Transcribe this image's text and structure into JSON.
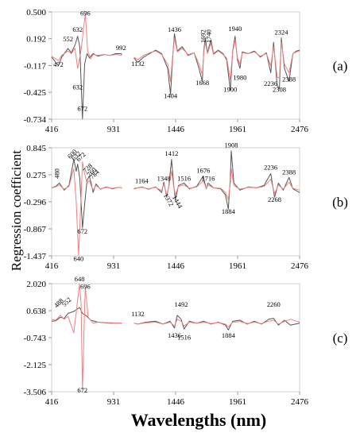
{
  "figure": {
    "xlabel": "Wavelengths (nm)",
    "ylabel": "Regression coefficient"
  },
  "chart_data": [
    {
      "type": "line",
      "panel_label": "(a)",
      "x_ticks": [
        416,
        931,
        1446,
        1961,
        2476
      ],
      "y_ticks": [
        0.5,
        0.192,
        -0.117,
        -0.425,
        -0.734
      ],
      "y_tick_labels": [
        "0.500",
        "0.192",
        "-0.117",
        "-0.425",
        "-0.734"
      ],
      "xlim": [
        416,
        2476
      ],
      "ylim": [
        -0.734,
        0.5
      ],
      "gap": [
        1000,
        1100
      ],
      "series": [
        {
          "color": "#555555",
          "x": [
            416,
            440,
            472,
            500,
            552,
            580,
            610,
            632,
            650,
            672,
            690,
            710,
            730,
            760,
            800,
            850,
            900,
            950,
            992,
            1000,
            1100,
            1132,
            1180,
            1230,
            1280,
            1330,
            1380,
            1404,
            1420,
            1436,
            1460,
            1500,
            1550,
            1600,
            1640,
            1668,
            1680,
            1692,
            1710,
            1740,
            1760,
            1800,
            1840,
            1870,
            1900,
            1920,
            1940,
            1960,
            1980,
            2000,
            2050,
            2100,
            2150,
            2200,
            2236,
            2260,
            2290,
            2308,
            2324,
            2350,
            2388,
            2420,
            2450,
            2476
          ],
          "y": [
            -0.02,
            -0.06,
            -0.12,
            -0.02,
            0.08,
            0.03,
            0.12,
            0.22,
            0.1,
            -0.73,
            -0.1,
            0.02,
            -0.03,
            0.02,
            -0.01,
            0.01,
            0.0,
            0.02,
            0.02,
            0.01,
            -0.03,
            -0.08,
            -0.02,
            0.02,
            0.06,
            0.02,
            -0.15,
            -0.45,
            -0.05,
            0.25,
            0.05,
            0.1,
            0.0,
            0.03,
            -0.15,
            -0.3,
            0.05,
            0.2,
            0.03,
            0.18,
            0.02,
            0.06,
            0.02,
            -0.05,
            -0.4,
            0.05,
            0.22,
            -0.05,
            -0.15,
            0.04,
            0.02,
            0.05,
            -0.02,
            0.03,
            -0.2,
            0.15,
            -0.35,
            -0.38,
            0.2,
            -0.15,
            -0.3,
            0.02,
            0.05,
            0.06
          ]
        },
        {
          "color": "#f08080",
          "x": [
            416,
            440,
            472,
            500,
            552,
            580,
            610,
            632,
            660,
            680,
            696,
            715,
            740,
            760,
            800,
            850,
            900,
            950,
            1000,
            1100,
            1132,
            1180,
            1230,
            1280,
            1330,
            1380,
            1404,
            1420,
            1436,
            1460,
            1500,
            1550,
            1600,
            1640,
            1668,
            1680,
            1692,
            1710,
            1740,
            1760,
            1800,
            1840,
            1870,
            1900,
            1920,
            1940,
            1960,
            1980,
            2000,
            2050,
            2100,
            2150,
            2200,
            2236,
            2260,
            2290,
            2308,
            2324,
            2350,
            2388,
            2420,
            2450,
            2476
          ],
          "y": [
            -0.01,
            -0.03,
            -0.06,
            0.0,
            0.05,
            0.02,
            0.08,
            -0.15,
            0.05,
            0.3,
            0.48,
            0.05,
            -0.04,
            0.01,
            0.0,
            0.01,
            0.0,
            0.01,
            0.0,
            -0.02,
            -0.05,
            0.0,
            0.03,
            0.05,
            0.01,
            -0.1,
            -0.3,
            -0.02,
            0.2,
            0.04,
            0.08,
            0.01,
            0.03,
            -0.1,
            -0.22,
            0.03,
            0.15,
            0.02,
            0.14,
            0.01,
            0.05,
            0.01,
            -0.03,
            -0.28,
            0.04,
            0.18,
            -0.03,
            -0.1,
            0.03,
            0.02,
            0.04,
            -0.01,
            0.02,
            -0.12,
            0.1,
            -0.25,
            -0.26,
            0.15,
            -0.1,
            -0.2,
            0.02,
            0.04,
            0.05
          ]
        }
      ],
      "annotations": [
        {
          "text": "696",
          "x": 696,
          "y": 0.46
        },
        {
          "text": "632",
          "x": 632,
          "y": 0.27
        },
        {
          "text": "552",
          "x": 552,
          "y": 0.16
        },
        {
          "text": "472",
          "x": 472,
          "y": -0.13
        },
        {
          "text": "632",
          "x": 632,
          "y": -0.39
        },
        {
          "text": "672",
          "x": 672,
          "y": -0.64
        },
        {
          "text": "992",
          "x": 992,
          "y": 0.06
        },
        {
          "text": "1132",
          "x": 1132,
          "y": -0.12
        },
        {
          "text": "1436",
          "x": 1436,
          "y": 0.27
        },
        {
          "text": "1404",
          "x": 1404,
          "y": -0.49
        },
        {
          "text": "1668",
          "x": 1668,
          "y": -0.34
        },
        {
          "text": "1692",
          "x": 1692,
          "y": 0.22,
          "rotate": -90
        },
        {
          "text": "1740",
          "x": 1740,
          "y": 0.22,
          "rotate": -90
        },
        {
          "text": "1940",
          "x": 1940,
          "y": 0.28
        },
        {
          "text": "1900",
          "x": 1900,
          "y": -0.42
        },
        {
          "text": "1980",
          "x": 1980,
          "y": -0.28
        },
        {
          "text": "2324",
          "x": 2324,
          "y": 0.24
        },
        {
          "text": "2236",
          "x": 2236,
          "y": -0.35
        },
        {
          "text": "2308",
          "x": 2308,
          "y": -0.42
        },
        {
          "text": "2388",
          "x": 2388,
          "y": -0.3
        }
      ]
    },
    {
      "type": "line",
      "panel_label": "(b)",
      "x_ticks": [
        416,
        931,
        1446,
        1961,
        2476
      ],
      "y_ticks": [
        0.845,
        0.275,
        -0.296,
        -0.867,
        -1.437
      ],
      "y_tick_labels": [
        "0.845",
        "0.275",
        "-0.296",
        "-0.867",
        "-1.437"
      ],
      "xlim": [
        416,
        2476
      ],
      "ylim": [
        -1.437,
        0.845
      ],
      "gap": [
        1000,
        1100
      ],
      "series": [
        {
          "color": "#555555",
          "x": [
            416,
            450,
            480,
            520,
            560,
            600,
            620,
            632,
            650,
            672,
            690,
            710,
            728,
            744,
            760,
            784,
            820,
            870,
            920,
            970,
            1000,
            1100,
            1164,
            1220,
            1280,
            1330,
            1348,
            1372,
            1390,
            1412,
            1430,
            1444,
            1470,
            1516,
            1560,
            1620,
            1676,
            1700,
            1716,
            1760,
            1820,
            1860,
            1884,
            1900,
            1908,
            1930,
            1980,
            2050,
            2120,
            2180,
            2236,
            2268,
            2300,
            2340,
            2388,
            2420,
            2476
          ],
          "y": [
            0.0,
            0.03,
            0.1,
            -0.05,
            0.05,
            0.6,
            0.35,
            0.5,
            0.2,
            -0.85,
            -0.35,
            0.15,
            0.25,
            0.1,
            -0.1,
            0.08,
            -0.03,
            0.02,
            -0.02,
            0.01,
            0.0,
            -0.02,
            0.02,
            -0.03,
            0.02,
            -0.1,
            0.12,
            -0.2,
            0.05,
            0.6,
            0.05,
            -0.25,
            0.05,
            0.1,
            -0.02,
            0.03,
            0.25,
            -0.02,
            0.1,
            0.0,
            -0.02,
            -0.15,
            -0.45,
            0.2,
            0.78,
            0.1,
            -0.05,
            0.02,
            0.0,
            0.05,
            0.3,
            -0.2,
            0.1,
            -0.05,
            0.22,
            -0.02,
            -0.1
          ]
        },
        {
          "color": "#f08080",
          "x": [
            416,
            450,
            480,
            520,
            560,
            600,
            620,
            640,
            660,
            672,
            690,
            710,
            728,
            744,
            760,
            784,
            820,
            870,
            920,
            970,
            1000,
            1100,
            1164,
            1220,
            1280,
            1330,
            1348,
            1372,
            1390,
            1412,
            1430,
            1444,
            1470,
            1516,
            1560,
            1620,
            1676,
            1700,
            1716,
            1760,
            1820,
            1860,
            1884,
            1900,
            1908,
            1930,
            1980,
            2050,
            2120,
            2180,
            2236,
            2268,
            2300,
            2340,
            2388,
            2420,
            2476
          ],
          "y": [
            0.0,
            0.02,
            0.06,
            -0.03,
            0.03,
            0.4,
            -0.3,
            -1.43,
            -0.2,
            0.55,
            0.3,
            0.1,
            0.15,
            0.05,
            -0.05,
            0.05,
            -0.02,
            0.01,
            -0.01,
            0.01,
            0.0,
            -0.01,
            0.01,
            -0.02,
            0.01,
            -0.06,
            0.08,
            -0.15,
            0.03,
            0.35,
            0.03,
            -0.15,
            0.03,
            0.06,
            -0.01,
            0.02,
            0.15,
            -0.01,
            0.06,
            0.0,
            -0.01,
            -0.1,
            -0.25,
            0.1,
            0.4,
            0.05,
            -0.03,
            0.01,
            0.0,
            0.03,
            0.18,
            -0.12,
            0.06,
            -0.03,
            0.12,
            -0.01,
            -0.05
          ]
        }
      ],
      "annotations": [
        {
          "text": "480",
          "x": 480,
          "y": 0.3,
          "rotate": -90
        },
        {
          "text": "600",
          "x": 600,
          "y": 0.68,
          "rotate": -45
        },
        {
          "text": "632",
          "x": 632,
          "y": 0.64,
          "rotate": -45
        },
        {
          "text": "672",
          "x": 672,
          "y": 0.62,
          "rotate": -45
        },
        {
          "text": "728",
          "x": 728,
          "y": 0.38,
          "rotate": -45
        },
        {
          "text": "760",
          "x": 760,
          "y": 0.3,
          "rotate": -45
        },
        {
          "text": "784",
          "x": 784,
          "y": 0.25,
          "rotate": -45
        },
        {
          "text": "672",
          "x": 672,
          "y": -0.97
        },
        {
          "text": "640",
          "x": 640,
          "y": -1.55
        },
        {
          "text": "1164",
          "x": 1164,
          "y": 0.1
        },
        {
          "text": "1348",
          "x": 1348,
          "y": 0.15
        },
        {
          "text": "1412",
          "x": 1412,
          "y": 0.68
        },
        {
          "text": "1516",
          "x": 1516,
          "y": 0.15
        },
        {
          "text": "1372",
          "x": 1372,
          "y": -0.28,
          "rotate": 60
        },
        {
          "text": "1444",
          "x": 1444,
          "y": -0.32,
          "rotate": 60
        },
        {
          "text": "1676",
          "x": 1676,
          "y": 0.32
        },
        {
          "text": "1716",
          "x": 1716,
          "y": 0.15
        },
        {
          "text": "1908",
          "x": 1908,
          "y": 0.85
        },
        {
          "text": "1884",
          "x": 1884,
          "y": -0.55
        },
        {
          "text": "2236",
          "x": 2236,
          "y": 0.38
        },
        {
          "text": "2268",
          "x": 2268,
          "y": -0.3
        },
        {
          "text": "2388",
          "x": 2388,
          "y": 0.28
        }
      ]
    },
    {
      "type": "line",
      "panel_label": "(c)",
      "x_ticks": [
        416,
        931,
        1446,
        1961,
        2476
      ],
      "y_ticks": [
        2.02,
        0.638,
        -0.743,
        -2.125,
        -3.506
      ],
      "y_tick_labels": [
        "2.020",
        "0.638",
        "-0.743",
        "-2.125",
        "-3.506"
      ],
      "xlim": [
        416,
        2476
      ],
      "ylim": [
        -3.506,
        2.02
      ],
      "gap": [
        1000,
        1100
      ],
      "series": [
        {
          "color": "#555555",
          "x": [
            416,
            450,
            488,
            520,
            552,
            600,
            648,
            672,
            700,
            740,
            800,
            900,
            1000,
            1100,
            1132,
            1200,
            1280,
            1340,
            1400,
            1436,
            1460,
            1492,
            1516,
            1560,
            1620,
            1680,
            1740,
            1800,
            1860,
            1884,
            1920,
            1980,
            2040,
            2100,
            2160,
            2220,
            2260,
            2300,
            2350,
            2400,
            2476
          ],
          "y": [
            0.1,
            0.12,
            0.3,
            0.25,
            0.5,
            0.6,
            0.8,
            0.5,
            0.4,
            0.15,
            0.05,
            0.0,
            0.0,
            0.0,
            -0.05,
            0.05,
            0.1,
            -0.05,
            0.1,
            -0.25,
            0.4,
            0.2,
            -0.3,
            0.1,
            0.0,
            0.1,
            -0.05,
            0.05,
            -0.1,
            -0.35,
            0.1,
            0.15,
            -0.05,
            0.1,
            -0.05,
            0.2,
            0.25,
            -0.1,
            0.15,
            -0.1,
            0.0
          ]
        },
        {
          "color": "#f08080",
          "x": [
            416,
            450,
            488,
            520,
            552,
            600,
            648,
            660,
            672,
            690,
            696,
            720,
            760,
            800,
            900,
            1000,
            1100,
            1132,
            1200,
            1280,
            1340,
            1400,
            1436,
            1460,
            1492,
            1516,
            1560,
            1620,
            1680,
            1740,
            1800,
            1860,
            1884,
            1920,
            1980,
            2040,
            2100,
            2160,
            2220,
            2260,
            2300,
            2350,
            2400,
            2476
          ],
          "y": [
            0.2,
            0.15,
            0.4,
            0.2,
            0.35,
            -0.5,
            2.0,
            1.0,
            -3.4,
            0.8,
            1.8,
            0.3,
            0.0,
            0.05,
            0.02,
            0.0,
            0.0,
            -0.05,
            0.02,
            0.05,
            -0.05,
            0.05,
            -0.15,
            0.2,
            0.1,
            -0.15,
            0.05,
            0.0,
            0.05,
            -0.02,
            0.03,
            -0.05,
            -0.2,
            0.05,
            0.08,
            -0.02,
            0.05,
            -0.02,
            0.1,
            0.15,
            -0.05,
            0.08,
            0.2,
            0.05
          ]
        }
      ],
      "annotations": [
        {
          "text": "648",
          "x": 648,
          "y": 2.15
        },
        {
          "text": "696",
          "x": 696,
          "y": 1.75
        },
        {
          "text": "488",
          "x": 488,
          "y": 0.95,
          "rotate": -45
        },
        {
          "text": "552",
          "x": 552,
          "y": 1.0,
          "rotate": -45
        },
        {
          "text": "672",
          "x": 672,
          "y": -3.55
        },
        {
          "text": "1132",
          "x": 1132,
          "y": 0.35
        },
        {
          "text": "1492",
          "x": 1492,
          "y": 0.85
        },
        {
          "text": "1436",
          "x": 1436,
          "y": -0.75
        },
        {
          "text": "1516",
          "x": 1516,
          "y": -0.85
        },
        {
          "text": "1884",
          "x": 1884,
          "y": -0.75
        },
        {
          "text": "2260",
          "x": 2260,
          "y": 0.85
        }
      ]
    }
  ]
}
